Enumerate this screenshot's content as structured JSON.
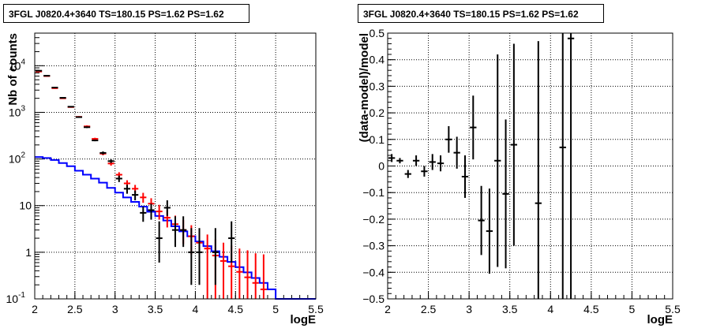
{
  "chart_data": [
    {
      "type": "line",
      "title": "3FGL J0820.4+3640 TS=180.15 PS=1.62 PS=1.62",
      "xlabel": "logE",
      "ylabel": "Nb of counts",
      "yscale": "log",
      "xlim": [
        2,
        5.5
      ],
      "ylim": [
        0.1,
        50000
      ],
      "grid": true,
      "x_ticks": [
        "2",
        "2.5",
        "3",
        "3.5",
        "4",
        "4.5",
        "5",
        "5.5"
      ],
      "y_ticks": [
        {
          "value": 0.1,
          "base": "10",
          "exp": "-1"
        },
        {
          "value": 1,
          "base": "1",
          "exp": ""
        },
        {
          "value": 10,
          "base": "10",
          "exp": ""
        },
        {
          "value": 100,
          "base": "10",
          "exp": "2"
        },
        {
          "value": 1000,
          "base": "10",
          "exp": "3"
        },
        {
          "value": 10000,
          "base": "10",
          "exp": "4"
        }
      ],
      "series": [
        {
          "color": "#0000ff",
          "style": "step",
          "bin_width": 0.1,
          "x": [
            2.0,
            2.1,
            2.2,
            2.3,
            2.4,
            2.5,
            2.6,
            2.7,
            2.8,
            2.9,
            3.0,
            3.1,
            3.2,
            3.3,
            3.4,
            3.5,
            3.6,
            3.7,
            3.8,
            3.9,
            4.0,
            4.1,
            4.2,
            4.3,
            4.4,
            4.5,
            4.6,
            4.7,
            4.8,
            4.9,
            5.0,
            5.1,
            5.2,
            5.3,
            5.4
          ],
          "y": [
            110,
            105,
            95,
            82,
            70,
            56,
            46,
            38,
            31,
            24,
            19,
            15,
            12,
            9.5,
            7.4,
            6.0,
            4.8,
            3.6,
            2.8,
            2.2,
            1.7,
            1.35,
            1.05,
            0.8,
            0.62,
            0.48,
            0.37,
            0.28,
            0.22,
            0.16,
            0.1,
            0.1,
            0.1,
            0.1,
            0.1
          ]
        },
        {
          "color": "#ff0000",
          "style": "points",
          "x": [
            2.05,
            2.15,
            2.25,
            2.35,
            2.45,
            2.55,
            2.65,
            2.75,
            2.85,
            2.95,
            3.05,
            3.15,
            3.25,
            3.35,
            3.45,
            3.55,
            3.65,
            3.75,
            3.85,
            3.95,
            4.05,
            4.15,
            4.25,
            4.35,
            4.45,
            4.55,
            4.65,
            4.75,
            4.85
          ],
          "y": [
            7500,
            6000,
            3300,
            2000,
            1300,
            800,
            500,
            270,
            130,
            80,
            46,
            30,
            23,
            15,
            11,
            7.5,
            5.5,
            4,
            3,
            2.2,
            1.6,
            1.2,
            0.85,
            0.65,
            0.5,
            0.38,
            0.29,
            0.22,
            0.16
          ],
          "err_low": [
            7300,
            5800,
            3200,
            1950,
            1260,
            770,
            475,
            255,
            120,
            72,
            40,
            25,
            18.5,
            11.5,
            8,
            5,
            3.4,
            2.3,
            1.5,
            0.9,
            0.44,
            0.1,
            0.1,
            0.1,
            0.1,
            0.1,
            0.1,
            0.1,
            0.1
          ],
          "err_high": [
            7700,
            6200,
            3420,
            2060,
            1340,
            830,
            525,
            285,
            140,
            88,
            52,
            35,
            27.8,
            18.8,
            14.4,
            10.4,
            8,
            6.1,
            4.9,
            3.8,
            2.9,
            2.4,
            1.9,
            1.6,
            1.4,
            1.2,
            1.1,
            0.95,
            0.9
          ]
        },
        {
          "color": "#000000",
          "style": "points",
          "x": [
            2.05,
            2.15,
            2.25,
            2.35,
            2.45,
            2.55,
            2.65,
            2.75,
            2.85,
            2.95,
            3.05,
            3.15,
            3.25,
            3.35,
            3.45,
            3.55,
            3.65,
            3.75,
            3.85,
            3.95,
            4.05,
            4.25,
            4.45
          ],
          "y": [
            7800,
            6100,
            3400,
            2050,
            1320,
            790,
            480,
            250,
            135,
            90,
            38,
            23,
            17,
            7,
            8,
            2,
            9,
            3,
            3,
            1,
            1,
            1,
            2
          ],
          "err_low": [
            7600,
            5900,
            3300,
            2000,
            1280,
            760,
            460,
            240,
            125,
            82,
            32,
            18,
            13,
            4.5,
            5,
            0.6,
            6,
            1.3,
            1.3,
            0.2,
            0.2,
            0.2,
            0.6
          ],
          "err_high": [
            8000,
            6300,
            3500,
            2100,
            1360,
            820,
            500,
            260,
            145,
            98,
            44,
            28,
            21,
            9.5,
            11,
            4.6,
            13,
            5.9,
            5.9,
            3.3,
            3.3,
            3.3,
            4.6
          ]
        }
      ]
    },
    {
      "type": "scatter",
      "title": "3FGL J0820.4+3640 TS=180.15 PS=1.62 PS=1.62",
      "xlabel": "logE",
      "ylabel": "(data-model)/model",
      "xlim": [
        2,
        5.5
      ],
      "ylim": [
        -0.5,
        0.5
      ],
      "grid": true,
      "x_ticks": [
        "2",
        "2.5",
        "3",
        "3.5",
        "4",
        "4.5",
        "5",
        "5.5"
      ],
      "y_ticks": [
        "−0.5",
        "−0.4",
        "−0.3",
        "−0.2",
        "−0.1",
        "0",
        "0.1",
        "0.2",
        "0.3",
        "0.4",
        "0.5"
      ],
      "series": [
        {
          "color": "#000000",
          "x": [
            2.05,
            2.15,
            2.25,
            2.35,
            2.45,
            2.55,
            2.65,
            2.75,
            2.85,
            2.95,
            3.05,
            3.15,
            3.25,
            3.35,
            3.45,
            3.55,
            3.85,
            4.15,
            4.25
          ],
          "y": [
            0.03,
            0.02,
            -0.03,
            0.02,
            -0.02,
            0.015,
            0.01,
            0.1,
            0.05,
            -0.04,
            0.145,
            -0.205,
            -0.245,
            0.02,
            -0.105,
            0.08,
            -0.14,
            0.07,
            0.48
          ],
          "err_low": [
            0.015,
            0.01,
            0.015,
            0.02,
            0.02,
            0.03,
            0.03,
            0.05,
            0.06,
            0.08,
            0.12,
            0.13,
            0.16,
            0.4,
            0.28,
            0.38,
            0.36,
            0.57,
            0.98
          ],
          "err_high": [
            0.015,
            0.01,
            0.015,
            0.02,
            0.02,
            0.03,
            0.03,
            0.05,
            0.06,
            0.08,
            0.12,
            0.13,
            0.16,
            0.4,
            0.28,
            0.38,
            0.61,
            0.43,
            0.02
          ]
        }
      ]
    }
  ]
}
